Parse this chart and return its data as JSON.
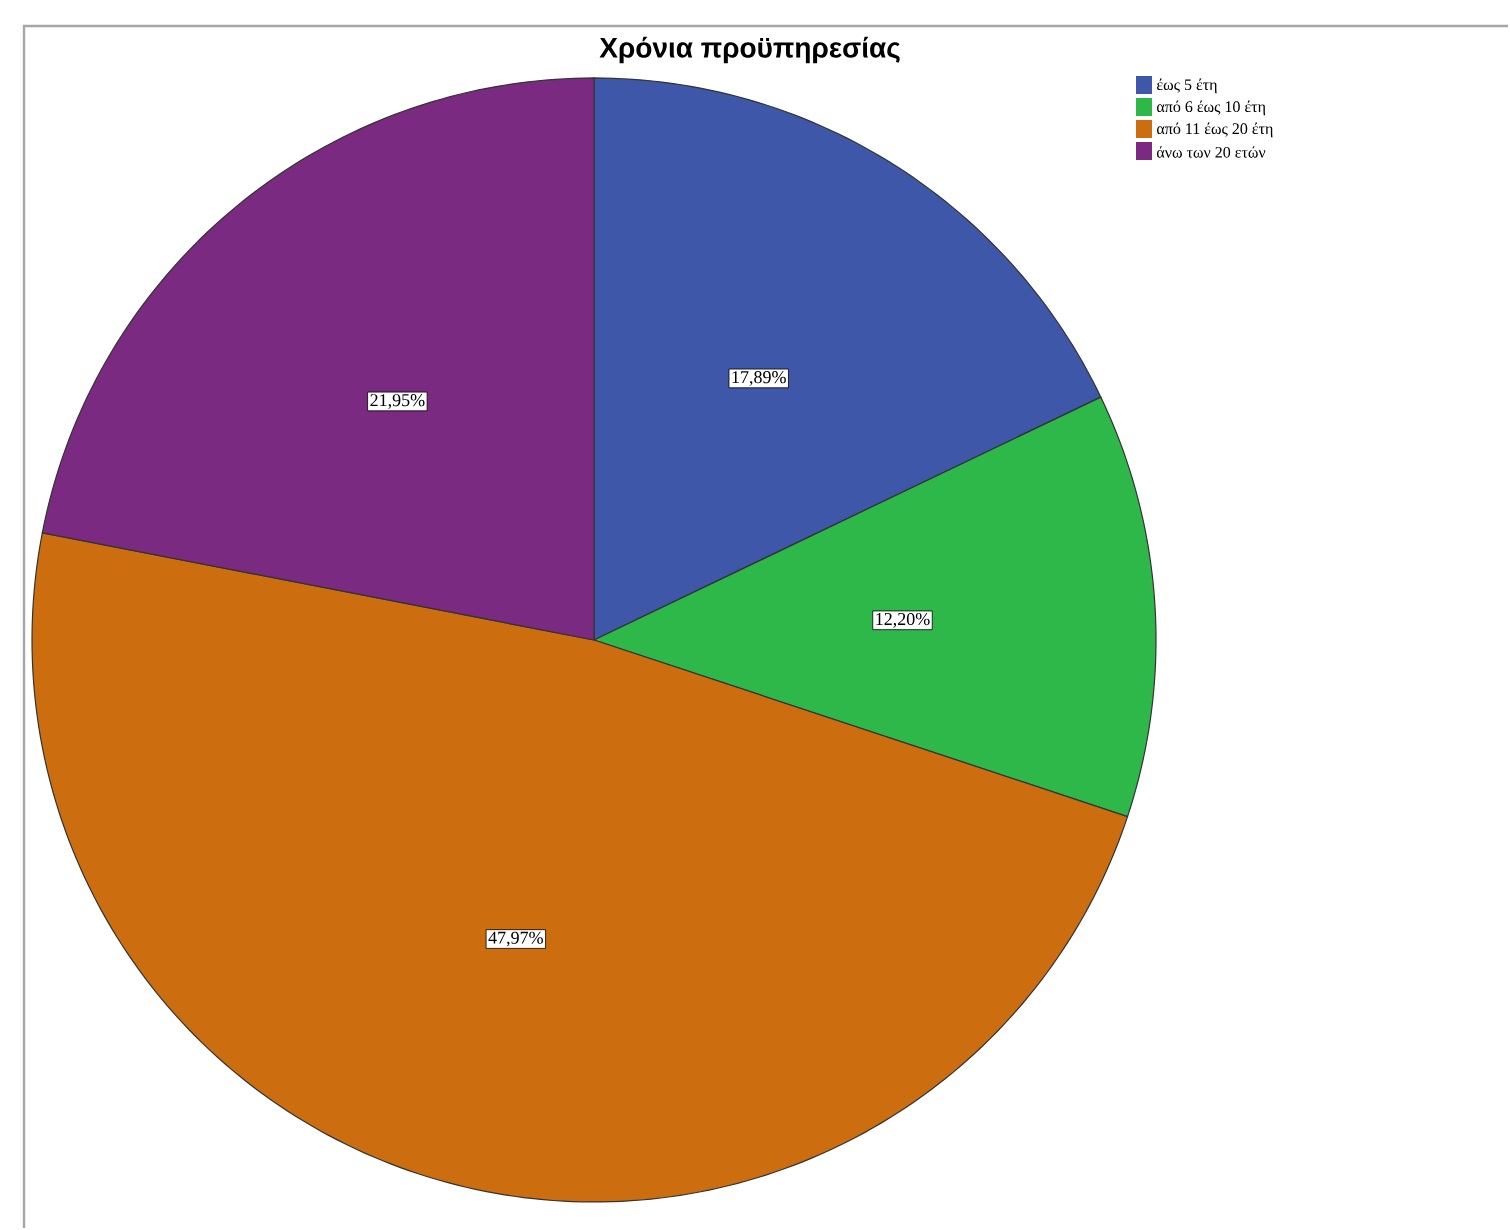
{
  "chart_data": {
    "type": "pie",
    "title": "Χρόνια προϋπηρεσίας",
    "categories": [
      "έως 5 έτη",
      "από 6 έως 10 έτη",
      "από 11 έως 20 έτη",
      "άνω των 20 ετών"
    ],
    "values": [
      17.89,
      12.2,
      47.97,
      21.95
    ],
    "value_labels": [
      "17,89%",
      "12,20%",
      "47,97%",
      "21,95%"
    ],
    "colors": [
      "#3f57a8",
      "#2fb84a",
      "#cc6e10",
      "#7a2a80"
    ],
    "legend": "top right"
  }
}
